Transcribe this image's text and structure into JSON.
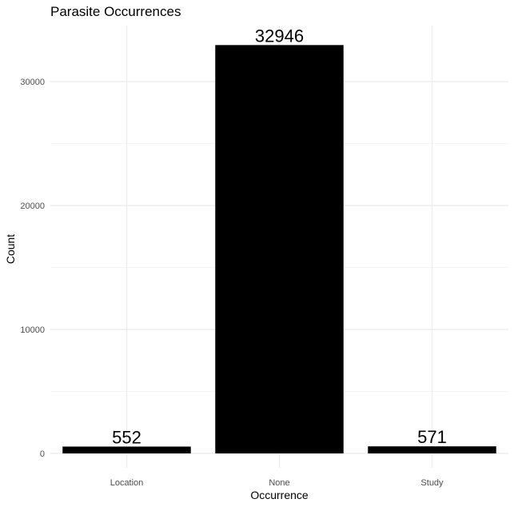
{
  "chart_data": {
    "type": "bar",
    "title": "Parasite Occurrences",
    "xlabel": "Occurrence",
    "ylabel": "Count",
    "categories": [
      "Location",
      "None",
      "Study"
    ],
    "values": [
      552,
      32946,
      571
    ],
    "data_labels": [
      "552",
      "32946",
      "571"
    ],
    "y_ticks": [
      0,
      10000,
      20000,
      30000
    ],
    "y_tick_labels": [
      "0",
      "10000",
      "20000",
      "30000"
    ],
    "ylim": [
      0,
      34593
    ],
    "grid": true,
    "legend": "none",
    "bar_color": "#000000",
    "grid_major_color": "#ebebeb",
    "grid_minor_color": "#f5f5f5"
  }
}
